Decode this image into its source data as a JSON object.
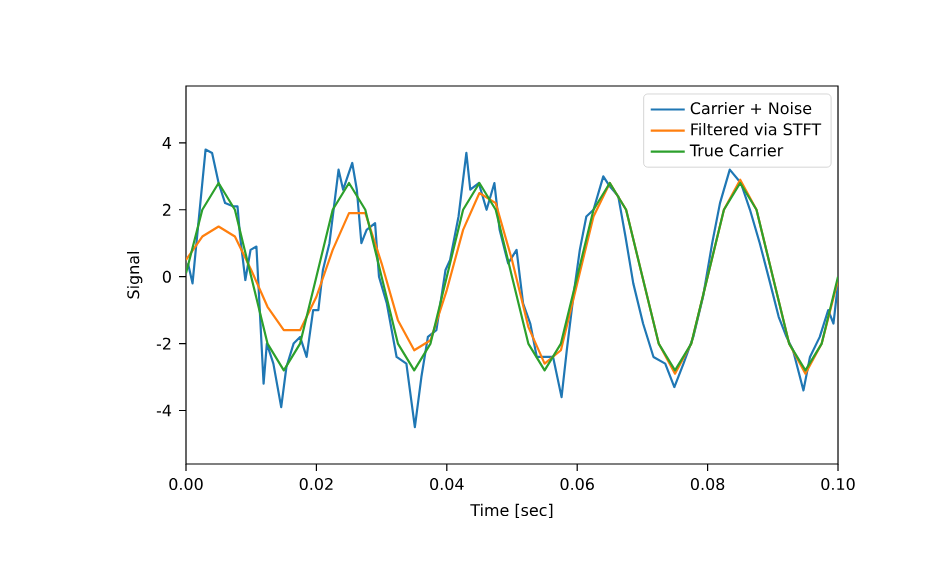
{
  "chart_data": {
    "type": "line",
    "xlabel": "Time [sec]",
    "ylabel": "Signal",
    "xlim": [
      0,
      0.1
    ],
    "ylim": [
      -5.6,
      5.7
    ],
    "xticks": [
      {
        "value": 0,
        "label": "0.00"
      },
      {
        "value": 0.02,
        "label": "0.02"
      },
      {
        "value": 0.04,
        "label": "0.04"
      },
      {
        "value": 0.06,
        "label": "0.06"
      },
      {
        "value": 0.08,
        "label": "0.08"
      },
      {
        "value": 0.1,
        "label": "0.10"
      }
    ],
    "yticks": [
      -4,
      -2,
      0,
      2,
      4
    ],
    "legend": "top right",
    "series": [
      {
        "name": "Carrier + Noise",
        "color": "#1f77b4",
        "x": [
          0.0003,
          0.001,
          0.003,
          0.004,
          0.005,
          0.006,
          0.0073,
          0.0079,
          0.0083,
          0.0091,
          0.0099,
          0.0108,
          0.0111,
          0.0119,
          0.0124,
          0.0134,
          0.0146,
          0.0154,
          0.0165,
          0.0175,
          0.0185,
          0.0195,
          0.0203,
          0.021,
          0.022,
          0.0234,
          0.0241,
          0.0255,
          0.0262,
          0.0269,
          0.0277,
          0.029,
          0.0296,
          0.0308,
          0.0323,
          0.0338,
          0.0351,
          0.0361,
          0.0371,
          0.0384,
          0.0398,
          0.0405,
          0.0418,
          0.043,
          0.0436,
          0.0449,
          0.0461,
          0.0473,
          0.0481,
          0.0494,
          0.0507,
          0.0517,
          0.0528,
          0.0538,
          0.0548,
          0.0563,
          0.0576,
          0.0584,
          0.0594,
          0.0604,
          0.0614,
          0.0625,
          0.064,
          0.065,
          0.0663,
          0.0674,
          0.0686,
          0.0701,
          0.0717,
          0.0735,
          0.0749,
          0.0763,
          0.0778,
          0.0793,
          0.0807,
          0.0819,
          0.0834,
          0.0851,
          0.0865,
          0.088,
          0.0896,
          0.0909,
          0.0921,
          0.0931,
          0.0947,
          0.0957,
          0.0972,
          0.0985,
          0.0993,
          0.1
        ],
        "values": [
          0.4,
          -0.2,
          3.8,
          3.7,
          2.8,
          2.2,
          2.1,
          2.1,
          1.2,
          -0.1,
          0.8,
          0.9,
          -0.2,
          -3.2,
          -2.0,
          -2.6,
          -3.9,
          -2.7,
          -2.0,
          -1.8,
          -2.4,
          -1.0,
          -1.0,
          0.2,
          1.0,
          3.2,
          2.6,
          3.4,
          2.6,
          1.0,
          1.4,
          1.6,
          0.0,
          -0.8,
          -2.4,
          -2.6,
          -4.5,
          -3.0,
          -1.8,
          -1.6,
          0.2,
          0.5,
          1.8,
          3.7,
          2.6,
          2.8,
          2.0,
          2.8,
          1.4,
          0.4,
          0.8,
          -0.8,
          -1.4,
          -2.4,
          -2.4,
          -2.4,
          -3.6,
          -2.2,
          -0.6,
          0.8,
          1.8,
          2.0,
          3.0,
          2.7,
          2.4,
          1.2,
          -0.2,
          -1.4,
          -2.4,
          -2.6,
          -3.3,
          -2.6,
          -1.8,
          -0.6,
          1.0,
          2.2,
          3.2,
          2.8,
          2.0,
          1.0,
          -0.2,
          -1.2,
          -1.8,
          -2.2,
          -3.4,
          -2.4,
          -1.8,
          -1.0,
          -1.4,
          -0.2
        ]
      },
      {
        "name": "Filtered via STFT",
        "color": "#ff7f0e",
        "x": [
          0,
          0.0025,
          0.005,
          0.0075,
          0.01,
          0.0125,
          0.015,
          0.0175,
          0.02,
          0.0225,
          0.025,
          0.0275,
          0.03,
          0.0325,
          0.035,
          0.0375,
          0.04,
          0.0425,
          0.045,
          0.0475,
          0.05,
          0.0525,
          0.055,
          0.0575,
          0.06,
          0.0625,
          0.065,
          0.0675,
          0.07,
          0.0725,
          0.075,
          0.0775,
          0.08,
          0.0825,
          0.085,
          0.0875,
          0.09,
          0.0925,
          0.095,
          0.0975,
          0.1
        ],
        "values": [
          0.5,
          1.2,
          1.5,
          1.2,
          0.2,
          -0.9,
          -1.6,
          -1.6,
          -0.6,
          0.8,
          1.9,
          1.9,
          0.4,
          -1.3,
          -2.2,
          -1.9,
          -0.4,
          1.4,
          2.5,
          2.2,
          0.5,
          -1.5,
          -2.6,
          -2.2,
          -0.2,
          1.8,
          2.8,
          2.0,
          0.0,
          -2.0,
          -2.9,
          -2.0,
          0.0,
          2.0,
          2.9,
          2.0,
          0.0,
          -2.0,
          -2.9,
          -2.0,
          -0.1
        ]
      },
      {
        "name": "True Carrier",
        "color": "#2ca02c",
        "x": [
          0,
          0.0025,
          0.005,
          0.0075,
          0.01,
          0.0125,
          0.015,
          0.0175,
          0.02,
          0.0225,
          0.025,
          0.0275,
          0.03,
          0.0325,
          0.035,
          0.0375,
          0.04,
          0.0425,
          0.045,
          0.0475,
          0.05,
          0.0525,
          0.055,
          0.0575,
          0.06,
          0.0625,
          0.065,
          0.0675,
          0.07,
          0.0725,
          0.075,
          0.0775,
          0.08,
          0.0825,
          0.085,
          0.0875,
          0.09,
          0.0925,
          0.095,
          0.0975,
          0.1
        ],
        "values": [
          0.1,
          2.0,
          2.8,
          2.0,
          0.0,
          -2.0,
          -2.8,
          -2.0,
          0.0,
          2.0,
          2.8,
          2.0,
          0.0,
          -2.0,
          -2.8,
          -2.0,
          0.0,
          2.0,
          2.8,
          2.0,
          0.0,
          -2.0,
          -2.8,
          -2.0,
          0.0,
          2.0,
          2.8,
          2.0,
          0.0,
          -2.0,
          -2.8,
          -2.0,
          0.0,
          2.0,
          2.8,
          2.0,
          0.0,
          -2.0,
          -2.8,
          -2.0,
          0.0
        ]
      }
    ]
  }
}
